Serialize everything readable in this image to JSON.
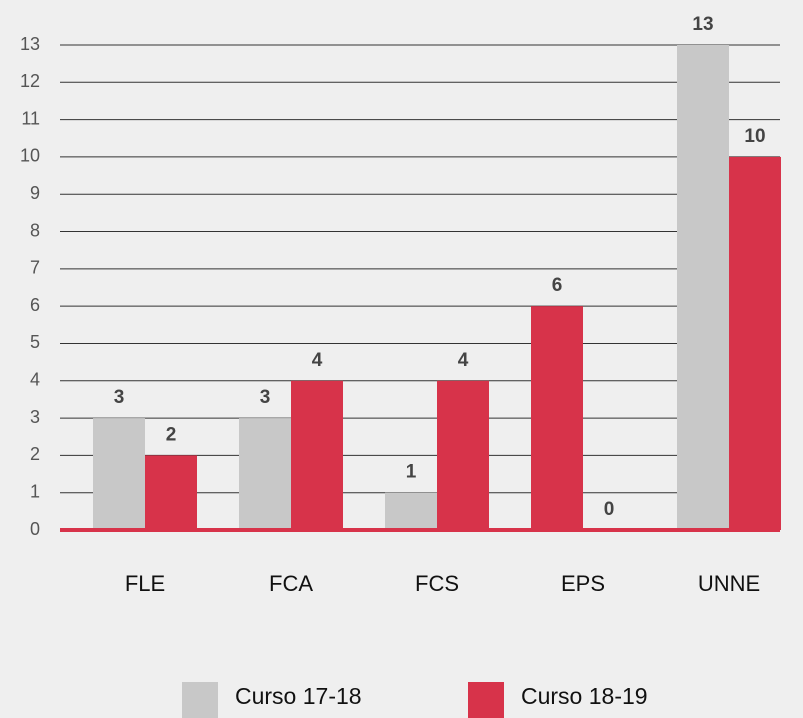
{
  "chart_data": {
    "type": "bar",
    "categories": [
      "FLE",
      "FCA",
      "FCS",
      "EPS",
      "UNNE"
    ],
    "series": [
      {
        "name": "Curso 17-18",
        "color": "#c8c8c8",
        "values": [
          3,
          3,
          1,
          6,
          13
        ],
        "point_colors": [
          "#c8c8c8",
          "#c8c8c8",
          "#c8c8c8",
          "#d7334a",
          "#c8c8c8"
        ]
      },
      {
        "name": "Curso 18-19",
        "color": "#d7334a",
        "values": [
          2,
          4,
          4,
          0,
          10
        ]
      }
    ],
    "ylim": [
      0,
      13
    ],
    "yticks": [
      0,
      1,
      2,
      3,
      4,
      5,
      6,
      7,
      8,
      9,
      10,
      11,
      12,
      13
    ],
    "grid": true,
    "legend": "bottom"
  }
}
